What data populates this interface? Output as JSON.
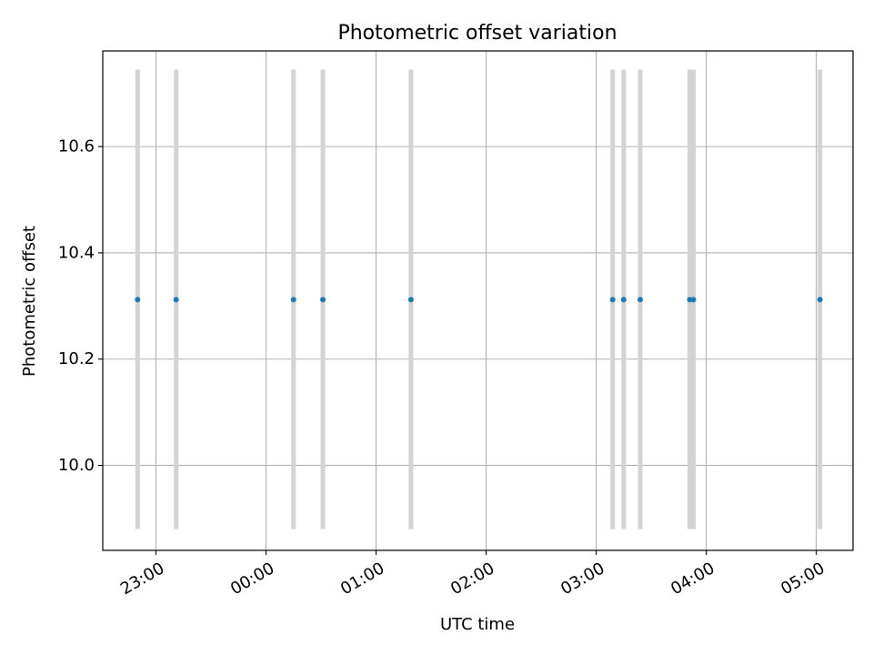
{
  "chart_data": {
    "type": "scatter",
    "title": "Photometric offset variation",
    "xlabel": "UTC time",
    "ylabel": "Photometric offset",
    "x_axis_kind": "time",
    "xlim": [
      "22:31",
      "05:20"
    ],
    "ylim": [
      9.84,
      10.78
    ],
    "grid": true,
    "x_ticks": [
      {
        "value": "23:00",
        "label": "23:00"
      },
      {
        "value": "00:00",
        "label": "00:00"
      },
      {
        "value": "01:00",
        "label": "01:00"
      },
      {
        "value": "02:00",
        "label": "02:00"
      },
      {
        "value": "03:00",
        "label": "03:00"
      },
      {
        "value": "04:00",
        "label": "04:00"
      },
      {
        "value": "05:00",
        "label": "05:00"
      }
    ],
    "y_ticks": [
      {
        "value": 10.0,
        "label": "10.0"
      },
      {
        "value": 10.2,
        "label": "10.2"
      },
      {
        "value": 10.4,
        "label": "10.4"
      },
      {
        "value": 10.6,
        "label": "10.6"
      }
    ],
    "error_bars": {
      "low": 9.88,
      "high": 10.745,
      "color": "#d3d3d3"
    },
    "marker_color": "#1f77b4",
    "series": [
      {
        "points": [
          {
            "x": "22:50",
            "y": 10.312
          },
          {
            "x": "23:11",
            "y": 10.312
          },
          {
            "x": "00:15",
            "y": 10.312
          },
          {
            "x": "00:31",
            "y": 10.312
          },
          {
            "x": "01:19",
            "y": 10.312
          },
          {
            "x": "03:09",
            "y": 10.312
          },
          {
            "x": "03:15",
            "y": 10.312
          },
          {
            "x": "03:24",
            "y": 10.312
          },
          {
            "x": "03:51",
            "y": 10.312
          },
          {
            "x": "03:53",
            "y": 10.312
          },
          {
            "x": "05:02",
            "y": 10.312
          }
        ]
      }
    ]
  }
}
